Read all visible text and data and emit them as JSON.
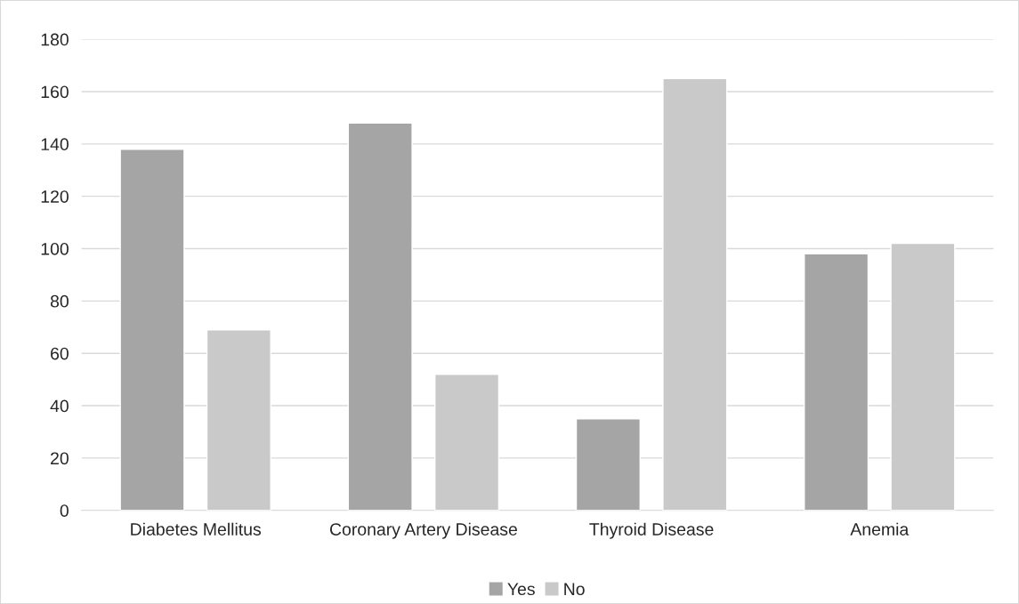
{
  "chart_data": {
    "type": "bar",
    "categories": [
      "Diabetes Mellitus",
      "Coronary Artery Disease",
      "Thyroid Disease",
      "Anemia"
    ],
    "series": [
      {
        "name": "Yes",
        "color": "#a5a5a5",
        "values": [
          138,
          148,
          35,
          98
        ]
      },
      {
        "name": "No",
        "color": "#c9c9c9",
        "values": [
          69,
          52,
          165,
          102
        ]
      }
    ],
    "ylim": [
      0,
      180
    ],
    "yticks": [
      0,
      20,
      40,
      60,
      80,
      100,
      120,
      140,
      160,
      180
    ],
    "grid": "y",
    "legend": "bottom"
  }
}
